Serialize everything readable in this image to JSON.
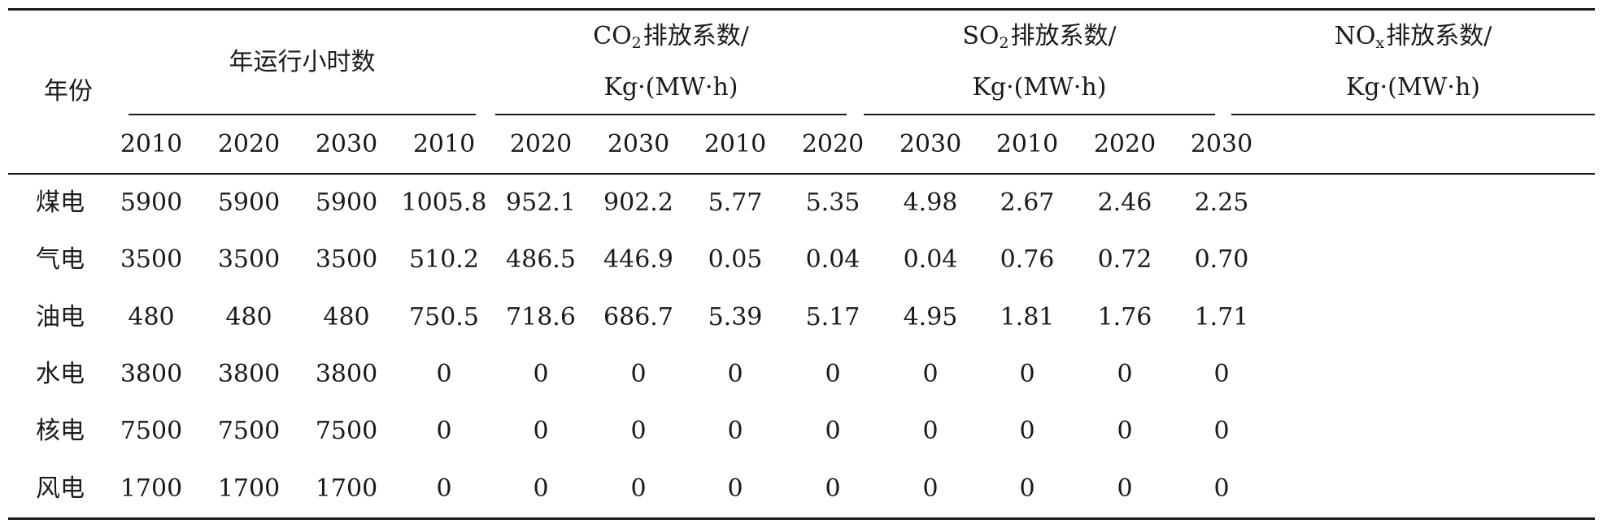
{
  "table": {
    "year_label": "年份",
    "groups": [
      {
        "line1": "年运行小时数"
      },
      {
        "prefix": "CO",
        "subscript": "2",
        "suffix": " 排放系数/",
        "line2": "Kg·(MW·h)"
      },
      {
        "prefix": "SO",
        "subscript": "2",
        "suffix": " 排放系数/",
        "line2": "Kg·(MW·h)"
      },
      {
        "prefix": "NO",
        "subscript": "x",
        "suffix": " 排放系数/",
        "line2": "Kg·(MW·h)"
      }
    ],
    "years": [
      "2010",
      "2020",
      "2030",
      "2010",
      "2020",
      "2030",
      "2010",
      "2020",
      "2030",
      "2010",
      "2020",
      "2030"
    ],
    "rows": [
      {
        "label": "煤电",
        "values": [
          "5900",
          "5900",
          "5900",
          "1005.8",
          "952.1",
          "902.2",
          "5.77",
          "5.35",
          "4.98",
          "2.67",
          "2.46",
          "2.25"
        ]
      },
      {
        "label": "气电",
        "values": [
          "3500",
          "3500",
          "3500",
          "510.2",
          "486.5",
          "446.9",
          "0.05",
          "0.04",
          "0.04",
          "0.76",
          "0.72",
          "0.70"
        ]
      },
      {
        "label": "油电",
        "values": [
          "480",
          "480",
          "480",
          "750.5",
          "718.6",
          "686.7",
          "5.39",
          "5.17",
          "4.95",
          "1.81",
          "1.76",
          "1.71"
        ]
      },
      {
        "label": "水电",
        "values": [
          "3800",
          "3800",
          "3800",
          "0",
          "0",
          "0",
          "0",
          "0",
          "0",
          "0",
          "0",
          "0"
        ]
      },
      {
        "label": "核电",
        "values": [
          "7500",
          "7500",
          "7500",
          "0",
          "0",
          "0",
          "0",
          "0",
          "0",
          "0",
          "0",
          "0"
        ]
      },
      {
        "label": "风电",
        "values": [
          "1700",
          "1700",
          "1700",
          "0",
          "0",
          "0",
          "0",
          "0",
          "0",
          "0",
          "0",
          "0"
        ]
      }
    ]
  }
}
